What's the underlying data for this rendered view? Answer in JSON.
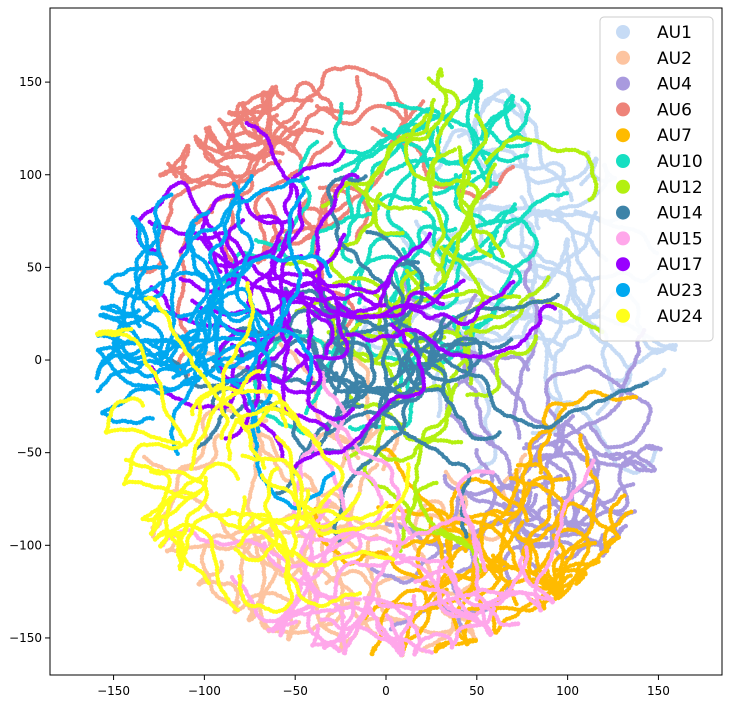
{
  "chart_data": {
    "type": "scatter",
    "title": "",
    "xlabel": "",
    "ylabel": "",
    "xlim": [
      -185,
      185
    ],
    "ylim": [
      -170,
      190
    ],
    "xticks": [
      -150,
      -100,
      -50,
      0,
      50,
      100,
      150
    ],
    "yticks": [
      -150,
      -100,
      -50,
      0,
      50,
      100,
      150
    ],
    "tick_labels_x": [
      "−150",
      "−100",
      "−50",
      "0",
      "50",
      "100",
      "150"
    ],
    "tick_labels_y": [
      "−150",
      "−100",
      "−50",
      "0",
      "50",
      "100",
      "150"
    ],
    "grid": false,
    "legend": "top-right",
    "series": [
      {
        "name": "AU1",
        "color": "#c6dbf5",
        "center": [
          105,
          40
        ],
        "spread": [
          25,
          50
        ]
      },
      {
        "name": "AU2",
        "color": "#fdc4a0",
        "center": [
          -45,
          -80
        ],
        "spread": [
          55,
          45
        ]
      },
      {
        "name": "AU4",
        "color": "#a99ade",
        "center": [
          90,
          -50
        ],
        "spread": [
          35,
          35
        ]
      },
      {
        "name": "AU6",
        "color": "#ee8379",
        "center": [
          -60,
          100
        ],
        "spread": [
          55,
          40
        ]
      },
      {
        "name": "AU7",
        "color": "#ffbb00",
        "center": [
          65,
          -110
        ],
        "spread": [
          35,
          30
        ]
      },
      {
        "name": "AU10",
        "color": "#16dfc2",
        "center": [
          35,
          80
        ],
        "spread": [
          55,
          55
        ]
      },
      {
        "name": "AU12",
        "color": "#b3f010",
        "center": [
          30,
          30
        ],
        "spread": [
          25,
          90
        ]
      },
      {
        "name": "AU14",
        "color": "#3d83a8",
        "center": [
          -10,
          -5
        ],
        "spread": [
          40,
          25
        ]
      },
      {
        "name": "AU15",
        "color": "#ffa7ea",
        "center": [
          0,
          -120
        ],
        "spread": [
          60,
          30
        ]
      },
      {
        "name": "AU17",
        "color": "#9900ff",
        "center": [
          -40,
          35
        ],
        "spread": [
          45,
          30
        ]
      },
      {
        "name": "AU23",
        "color": "#00a8f0",
        "center": [
          -110,
          20
        ],
        "spread": [
          40,
          45
        ]
      },
      {
        "name": "AU24",
        "color": "#ffff1a",
        "center": [
          -95,
          -50
        ],
        "spread": [
          45,
          40
        ]
      }
    ]
  }
}
